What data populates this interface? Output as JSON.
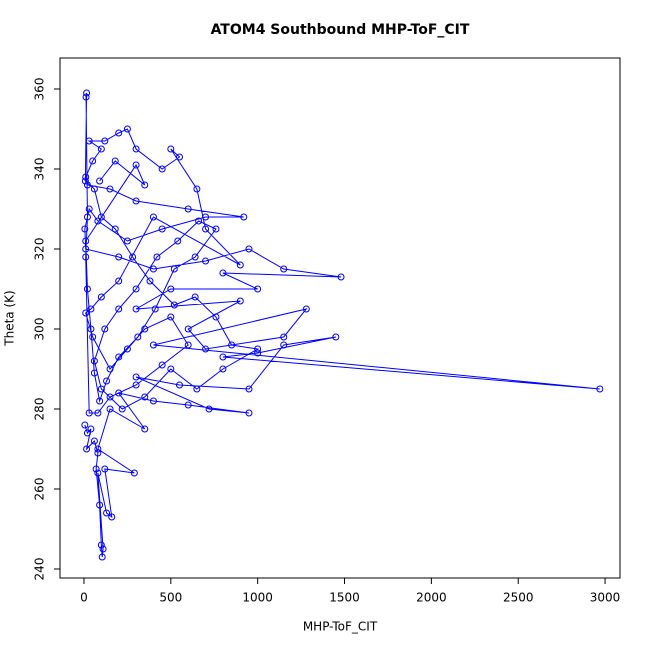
{
  "chart_data": {
    "type": "line",
    "title": "ATOM4 Southbound MHP-ToF_CIT",
    "x_label": "MHP-ToF_CIT",
    "y_label": "Theta (K)",
    "color": "#0000ff",
    "markers": "open-circle",
    "x": [
      5,
      20,
      40,
      15,
      60,
      80,
      70,
      90,
      100,
      105,
      110,
      80,
      130,
      160,
      120,
      290,
      80,
      150,
      350,
      200,
      400,
      600,
      950,
      720,
      300,
      550,
      950,
      1150,
      1450,
      1000,
      800,
      2970,
      400,
      1280,
      1150,
      700,
      600,
      900,
      300,
      500,
      1000,
      800,
      1480,
      1150,
      950,
      700,
      400,
      200,
      10,
      5,
      30,
      80,
      250,
      450,
      700,
      920,
      600,
      300,
      150,
      20,
      10,
      50,
      100,
      30,
      120,
      200,
      250,
      300,
      450,
      550,
      500,
      650,
      700,
      900,
      400,
      200,
      100,
      40,
      10,
      50,
      150,
      250,
      350,
      500,
      600,
      450,
      300,
      150,
      80,
      30,
      10,
      20,
      12,
      15,
      8,
      60,
      100,
      180,
      280,
      380,
      520,
      640,
      760,
      850,
      1000,
      800,
      650,
      500,
      350,
      220,
      100,
      60,
      120,
      200,
      300,
      420,
      540,
      660,
      760,
      640,
      520,
      410,
      310,
      200,
      130,
      90,
      60,
      40,
      20,
      10,
      300,
      350,
      180,
      90
    ],
    "y": [
      276,
      274,
      275,
      270,
      272,
      269,
      265,
      256,
      246,
      243,
      245,
      264,
      254,
      253,
      265,
      264,
      270,
      280,
      275,
      284,
      282,
      281,
      279,
      280,
      288,
      286,
      285,
      296,
      298,
      294,
      293,
      285,
      296,
      305,
      298,
      295,
      300,
      307,
      305,
      310,
      310,
      314,
      313,
      315,
      320,
      317,
      315,
      318,
      320,
      325,
      330,
      327,
      322,
      325,
      328,
      328,
      330,
      332,
      335,
      336,
      338,
      342,
      345,
      347,
      347,
      349,
      350,
      345,
      340,
      343,
      345,
      335,
      325,
      316,
      328,
      312,
      308,
      305,
      304,
      298,
      290,
      295,
      300,
      303,
      296,
      291,
      286,
      283,
      279,
      279,
      318,
      328,
      358,
      359,
      337,
      335,
      328,
      325,
      318,
      312,
      306,
      308,
      303,
      296,
      295,
      290,
      285,
      290,
      283,
      280,
      285,
      292,
      300,
      305,
      310,
      318,
      322,
      327,
      325,
      318,
      315,
      305,
      298,
      293,
      287,
      282,
      289,
      300,
      310,
      322,
      341,
      336,
      342,
      337
    ],
    "xlim": [
      -138,
      3086
    ],
    "ylim": [
      237.75,
      367.75
    ],
    "xticks": [
      0,
      500,
      1000,
      1500,
      2000,
      2500,
      3000
    ],
    "yticks": [
      240,
      260,
      280,
      300,
      320,
      340,
      360
    ]
  }
}
